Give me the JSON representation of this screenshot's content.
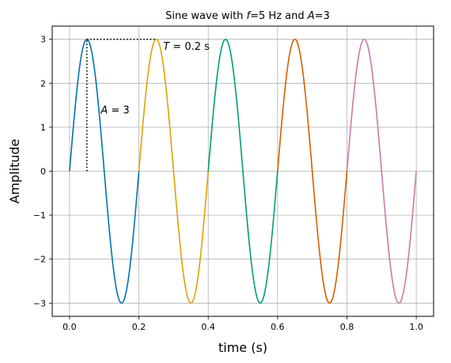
{
  "chart_data": {
    "type": "line",
    "title": {
      "prefix": "Sine wave with ",
      "f_symbol": "f",
      "f_value": "=5 Hz and ",
      "a_symbol": "A",
      "a_value": "=3"
    },
    "xlabel": "time (s)",
    "ylabel": "Amplitude",
    "xlim": [
      -0.05,
      1.05
    ],
    "ylim": [
      -3.3,
      3.3
    ],
    "xticks": [
      0.0,
      0.2,
      0.4,
      0.6,
      0.8,
      1.0
    ],
    "xtick_labels": [
      "0.0",
      "0.2",
      "0.4",
      "0.6",
      "0.8",
      "1.0"
    ],
    "yticks": [
      -3,
      -2,
      -1,
      0,
      1,
      2,
      3
    ],
    "ytick_labels": [
      "−3",
      "−2",
      "−1",
      "0",
      "1",
      "2",
      "3"
    ],
    "grid": true,
    "frequency_hz": 5,
    "amplitude": 3,
    "series": [
      {
        "x_range": [
          0.0,
          0.2
        ],
        "color": "#0072b2"
      },
      {
        "x_range": [
          0.2,
          0.4
        ],
        "color": "#e69f00"
      },
      {
        "x_range": [
          0.4,
          0.6
        ],
        "color": "#009e73"
      },
      {
        "x_range": [
          0.6,
          0.8
        ],
        "color": "#d55e00"
      },
      {
        "x_range": [
          0.8,
          1.0
        ],
        "color": "#cc79a7"
      }
    ],
    "annotations": [
      {
        "symbol": "A",
        "text": " = 3",
        "x": 0.09,
        "y": 1.4
      },
      {
        "symbol": "T",
        "text": " = 0.2 s",
        "x": 0.27,
        "y": 2.85
      }
    ],
    "guide_lines": [
      {
        "x1": 0.05,
        "y1": 0,
        "x2": 0.05,
        "y2": 3
      },
      {
        "x1": 0.05,
        "y1": 3,
        "x2": 0.25,
        "y2": 3
      }
    ]
  }
}
